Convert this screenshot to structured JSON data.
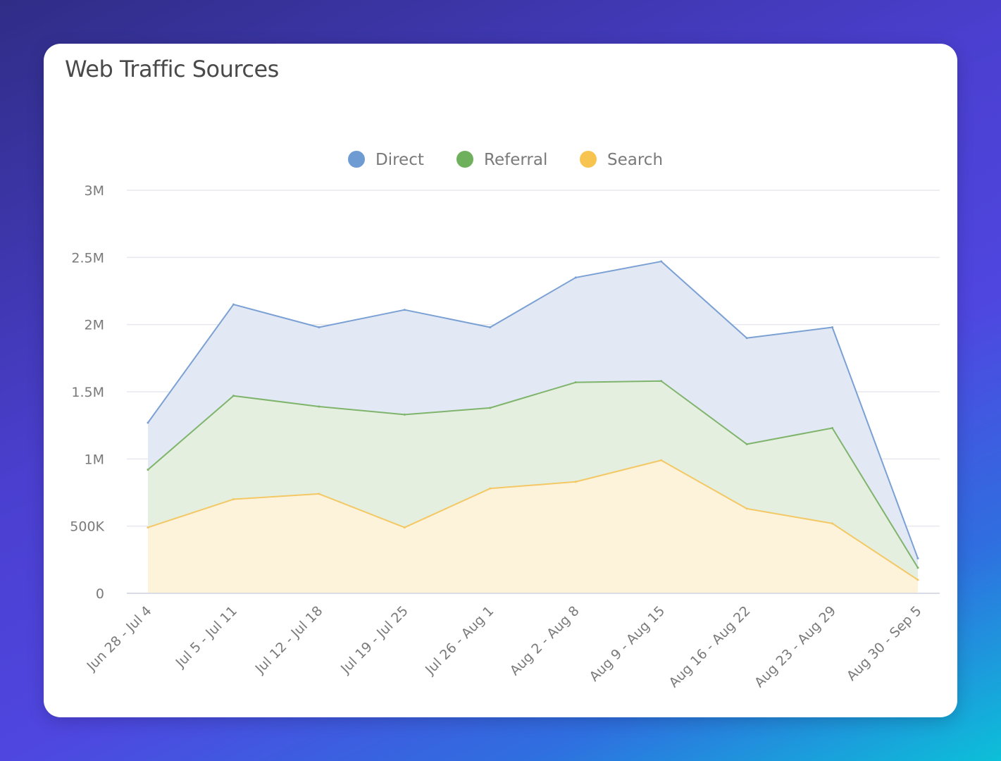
{
  "card": {
    "title": "Web Traffic Sources"
  },
  "chart_data": {
    "type": "area",
    "title": "Web Traffic Sources",
    "categories": [
      "Jun 28 - Jul 4",
      "Jul 5 - Jul 11",
      "Jul 12 - Jul 18",
      "Jul 19 - Jul 25",
      "Jul 26 - Aug 1",
      "Aug 2 - Aug 8",
      "Aug 9 - Aug 15",
      "Aug 16 - Aug 22",
      "Aug 23 - Aug 29",
      "Aug 30 - Sep 5"
    ],
    "series": [
      {
        "name": "Direct",
        "color": "#7ba1d4",
        "fill": "#e3e9f4",
        "values": [
          1270000,
          2150000,
          1980000,
          2110000,
          1980000,
          2350000,
          2470000,
          1900000,
          1980000,
          260000
        ]
      },
      {
        "name": "Referral",
        "color": "#7fb46c",
        "fill": "#e4efdf",
        "values": [
          920000,
          1470000,
          1390000,
          1330000,
          1380000,
          1570000,
          1580000,
          1110000,
          1230000,
          190000
        ]
      },
      {
        "name": "Search",
        "color": "#f3c865",
        "fill": "#fdf2da",
        "values": [
          490000,
          700000,
          740000,
          490000,
          780000,
          830000,
          990000,
          630000,
          520000,
          100000
        ]
      }
    ],
    "ylim": [
      0,
      3000000
    ],
    "yticks": [
      {
        "value": 3000000,
        "label": "3M"
      },
      {
        "value": 2500000,
        "label": "2.5M"
      },
      {
        "value": 2000000,
        "label": "2M"
      },
      {
        "value": 1500000,
        "label": "1.5M"
      },
      {
        "value": 1000000,
        "label": "1M"
      },
      {
        "value": 500000,
        "label": "500K"
      },
      {
        "value": 0,
        "label": "0"
      }
    ],
    "xlabel": "",
    "ylabel": "",
    "grid": true,
    "legend": "top-center",
    "stacked": false
  }
}
